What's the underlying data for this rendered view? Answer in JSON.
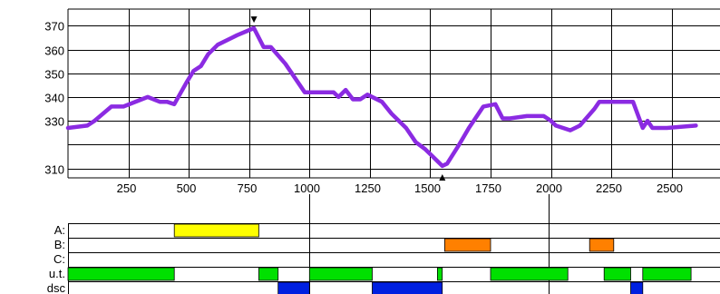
{
  "chart_data": {
    "type": "line",
    "x_ticks": [
      250,
      500,
      750,
      1000,
      1250,
      1500,
      1750,
      2000,
      2250,
      2500
    ],
    "y_ticks": [
      310,
      320,
      330,
      340,
      350,
      360,
      370
    ],
    "y_tick_labels": [
      "310",
      "",
      "330",
      "340",
      "350",
      "360",
      "370"
    ],
    "xlim": [
      0,
      2700
    ],
    "ylim": [
      306,
      377
    ],
    "grid": true,
    "series": [
      {
        "color": "#8b2be2",
        "points": [
          [
            0,
            327
          ],
          [
            80,
            328
          ],
          [
            110,
            330
          ],
          [
            180,
            336
          ],
          [
            230,
            336
          ],
          [
            330,
            340
          ],
          [
            380,
            338
          ],
          [
            410,
            338
          ],
          [
            440,
            337
          ],
          [
            490,
            346
          ],
          [
            520,
            351
          ],
          [
            550,
            353
          ],
          [
            580,
            358
          ],
          [
            620,
            362
          ],
          [
            700,
            366
          ],
          [
            770,
            369
          ],
          [
            810,
            361
          ],
          [
            840,
            361
          ],
          [
            900,
            354
          ],
          [
            980,
            342
          ],
          [
            1000,
            342
          ],
          [
            1060,
            342
          ],
          [
            1100,
            342
          ],
          [
            1120,
            340
          ],
          [
            1150,
            343
          ],
          [
            1180,
            339
          ],
          [
            1210,
            339
          ],
          [
            1240,
            341
          ],
          [
            1300,
            338
          ],
          [
            1340,
            333
          ],
          [
            1400,
            327
          ],
          [
            1440,
            321
          ],
          [
            1480,
            318
          ],
          [
            1510,
            315
          ],
          [
            1550,
            311
          ],
          [
            1570,
            312
          ],
          [
            1620,
            320
          ],
          [
            1660,
            327
          ],
          [
            1720,
            336
          ],
          [
            1770,
            337
          ],
          [
            1800,
            331
          ],
          [
            1830,
            331
          ],
          [
            1900,
            332
          ],
          [
            1970,
            332
          ],
          [
            2000,
            330
          ],
          [
            2020,
            328
          ],
          [
            2080,
            326
          ],
          [
            2120,
            328
          ],
          [
            2180,
            335
          ],
          [
            2200,
            338
          ],
          [
            2340,
            338
          ],
          [
            2380,
            327
          ],
          [
            2400,
            330
          ],
          [
            2420,
            327
          ],
          [
            2480,
            327
          ],
          [
            2600,
            328
          ]
        ]
      }
    ],
    "markers": [
      {
        "kind": "max",
        "x": 770,
        "symbol": "▼"
      },
      {
        "kind": "min",
        "x": 1550,
        "symbol": "▲"
      }
    ],
    "tracks": [
      {
        "label": "A:",
        "segments": [
          {
            "start": 440,
            "end": 790,
            "color": "#ffff00"
          }
        ]
      },
      {
        "label": "B:",
        "segments": [
          {
            "start": 1560,
            "end": 1750,
            "color": "#ff8000"
          },
          {
            "start": 2160,
            "end": 2260,
            "color": "#ff8000"
          }
        ]
      },
      {
        "label": "C:",
        "segments": []
      },
      {
        "label": "u.t.",
        "segments": [
          {
            "start": 0,
            "end": 440,
            "color": "#00e000"
          },
          {
            "start": 790,
            "end": 870,
            "color": "#00e000"
          },
          {
            "start": 1000,
            "end": 1260,
            "color": "#00e000"
          },
          {
            "start": 1530,
            "end": 1550,
            "color": "#00e000"
          },
          {
            "start": 1750,
            "end": 2070,
            "color": "#00e000"
          },
          {
            "start": 2220,
            "end": 2330,
            "color": "#00e000"
          },
          {
            "start": 2380,
            "end": 2580,
            "color": "#00e000"
          }
        ]
      },
      {
        "label": "dsc",
        "segments": [
          {
            "start": 870,
            "end": 1000,
            "color": "#0020e0"
          },
          {
            "start": 1260,
            "end": 1550,
            "color": "#0020e0"
          },
          {
            "start": 2330,
            "end": 2380,
            "color": "#0020e0"
          }
        ]
      }
    ],
    "section_dividers_x": [
      1000,
      1990
    ]
  }
}
